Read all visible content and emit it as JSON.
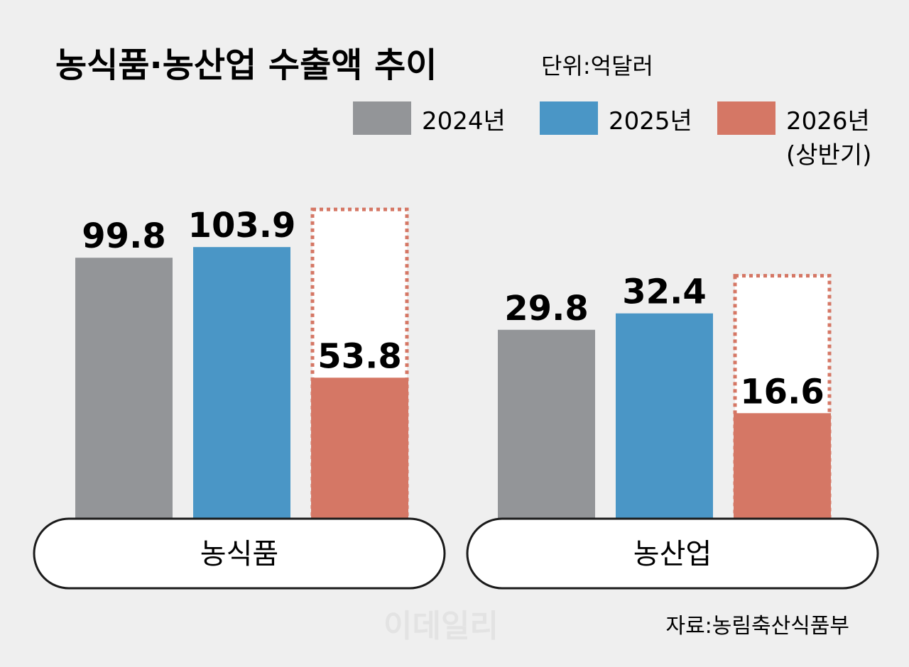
{
  "chart_data": {
    "type": "bar",
    "title": "농식품·농산업 수출액 추이",
    "unit": "단위:억달러",
    "categories": [
      "농식품",
      "농산업"
    ],
    "series": [
      {
        "name": "2024년",
        "values": [
          99.8,
          29.8
        ],
        "color": "#939598"
      },
      {
        "name": "2025년",
        "values": [
          103.9,
          32.4
        ],
        "color": "#4a96c6"
      },
      {
        "name": "2026년",
        "name_line2": "(상반기)",
        "values": [
          53.8,
          16.6
        ],
        "color": "#d57765",
        "projected_outline": true
      }
    ],
    "legend": "top-right",
    "grid": false,
    "source": "자료:농림축산식품부",
    "watermark": "이데일리"
  }
}
